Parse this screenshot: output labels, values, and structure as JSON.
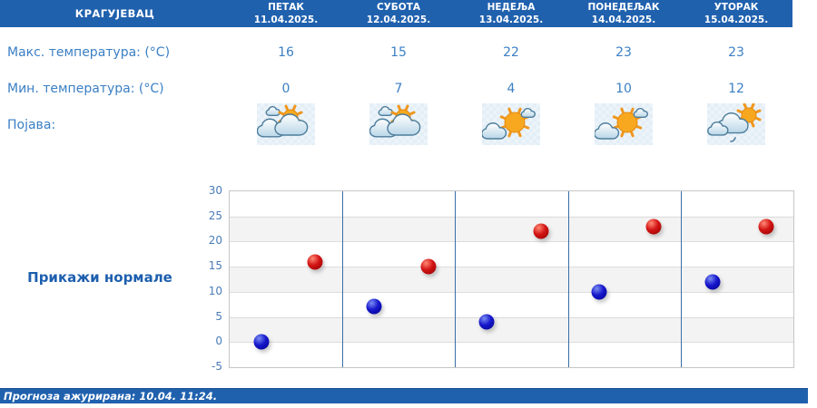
{
  "header": {
    "location": "КРАГУЈЕВАЦ",
    "days": [
      {
        "name": "ПЕТАК",
        "date": "11.04.2025."
      },
      {
        "name": "СУБОТА",
        "date": "12.04.2025."
      },
      {
        "name": "НЕДЕЉА",
        "date": "13.04.2025."
      },
      {
        "name": "ПОНЕДЕЉАК",
        "date": "14.04.2025."
      },
      {
        "name": "УТОРАК",
        "date": "15.04.2025."
      }
    ]
  },
  "table": {
    "max_label": "Макс. температура: (°C)",
    "min_label": "Мин. температура: (°C)",
    "phenomenon_label": "Појава:",
    "max_values": [
      16,
      15,
      22,
      23,
      23
    ],
    "min_values": [
      0,
      7,
      4,
      10,
      12
    ],
    "icons": [
      "partly-cloudy-icon",
      "partly-cloudy-icon",
      "mostly-sunny-icon",
      "mostly-sunny-icon",
      "sun-cloud-drizzle-icon"
    ]
  },
  "normals_button": "Прикажи нормале",
  "chart_data": {
    "type": "scatter",
    "categories": [
      "ПЕТАК 11.04.2025.",
      "СУБОТА 12.04.2025.",
      "НЕДЕЉА 13.04.2025.",
      "ПОНЕДЕЉАК 14.04.2025.",
      "УТОРАК 15.04.2025."
    ],
    "series": [
      {
        "name": "Макс. температура (°C)",
        "color": "#cc0000",
        "values": [
          16,
          15,
          22,
          23,
          23
        ]
      },
      {
        "name": "Мин. температура (°C)",
        "color": "#0000bb",
        "values": [
          0,
          7,
          4,
          10,
          12
        ]
      }
    ],
    "ylim": [
      -5,
      30
    ],
    "yticks": [
      30,
      25,
      20,
      15,
      10,
      5,
      0,
      -5
    ],
    "grid": true,
    "legend": "none"
  },
  "footer": {
    "updated": "Прогноза ажурирана:  10.04. 11:24."
  },
  "colors": {
    "header_bg": "#2061ae",
    "text_blue": "#3b7fc4",
    "dark_blue": "#1d5fae",
    "max_point": "#cc0000",
    "min_point": "#0000bb",
    "divider": "#3a6ea5",
    "band_gray": "#f3f3f3"
  }
}
